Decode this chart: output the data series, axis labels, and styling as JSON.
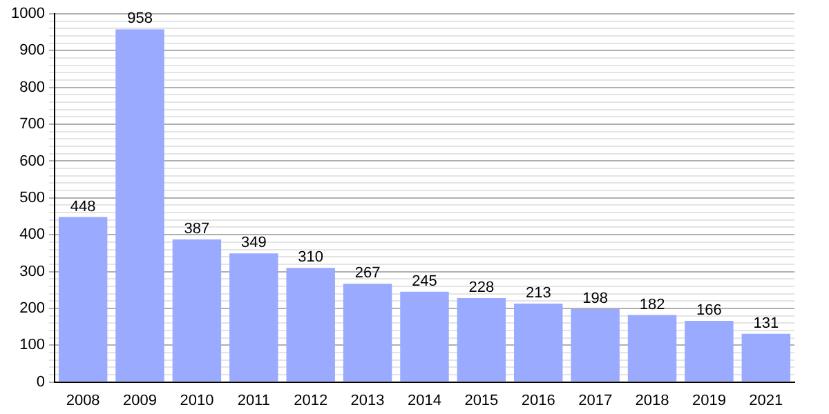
{
  "chart_data": {
    "type": "bar",
    "categories": [
      "2008",
      "2009",
      "2010",
      "2011",
      "2012",
      "2013",
      "2014",
      "2015",
      "2016",
      "2017",
      "2018",
      "2019",
      "2021"
    ],
    "values": [
      448,
      958,
      387,
      349,
      310,
      267,
      245,
      228,
      213,
      198,
      182,
      166,
      131
    ],
    "color": "#99aaff",
    "ylim": [
      0,
      1000
    ],
    "yticks": [
      0,
      {
        "value": 20,
        "label": null
      },
      {
        "value": 40,
        "label": null
      },
      {
        "value": 60,
        "label": null
      },
      {
        "value": 80,
        "label": null
      },
      100,
      {
        "value": 120,
        "label": null
      },
      {
        "value": 140,
        "label": null
      },
      {
        "value": 160,
        "label": null
      },
      {
        "value": 180,
        "label": null
      },
      200,
      {
        "value": 220,
        "label": null
      },
      {
        "value": 240,
        "label": null
      },
      {
        "value": 260,
        "label": null
      },
      {
        "value": 280,
        "label": null
      },
      300,
      {
        "value": 320,
        "label": null
      },
      {
        "value": 340,
        "label": null
      },
      {
        "value": 360,
        "label": null
      },
      {
        "value": 380,
        "label": null
      },
      400,
      {
        "value": 420,
        "label": null
      },
      {
        "value": 440,
        "label": null
      },
      {
        "value": 460,
        "label": null
      },
      {
        "value": 480,
        "label": null
      },
      500,
      {
        "value": 520,
        "label": null
      },
      {
        "value": 540,
        "label": null
      },
      {
        "value": 560,
        "label": null
      },
      {
        "value": 580,
        "label": null
      },
      600,
      {
        "value": 620,
        "label": null
      },
      {
        "value": 640,
        "label": null
      },
      {
        "value": 660,
        "label": null
      },
      {
        "value": 680,
        "label": null
      },
      700,
      {
        "value": 720,
        "label": null
      },
      {
        "value": 740,
        "label": null
      },
      {
        "value": 760,
        "label": null
      },
      {
        "value": 780,
        "label": null
      },
      800,
      {
        "value": 820,
        "label": null
      },
      {
        "value": 840,
        "label": null
      },
      {
        "value": 860,
        "label": null
      },
      {
        "value": 880,
        "label": null
      },
      900,
      {
        "value": 920,
        "label": null
      },
      {
        "value": 940,
        "label": null
      },
      {
        "value": 960,
        "label": null
      },
      {
        "value": 980,
        "label": null
      },
      1000
    ],
    "grid": "y",
    "data_labels": true,
    "legend": false
  }
}
